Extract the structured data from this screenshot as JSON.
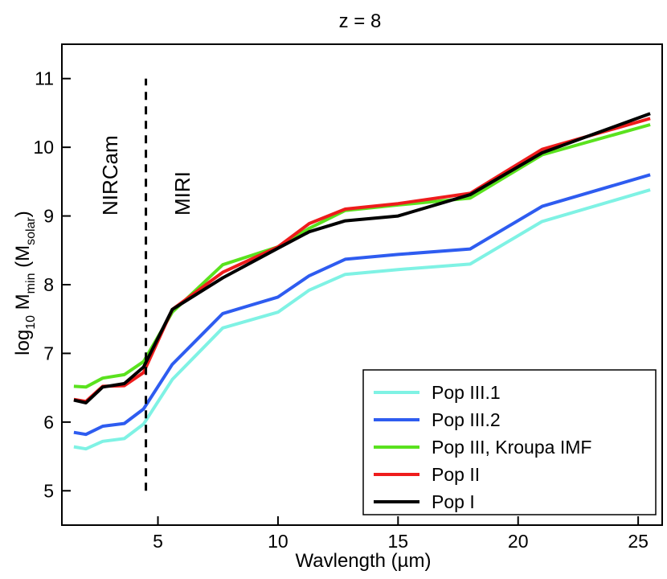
{
  "chart_data": {
    "type": "line",
    "title": "z = 8",
    "xlabel": "Wavlength (µm)",
    "ylabel": {
      "prefix": "log",
      "sub1": "10",
      "mid": " M",
      "sub2": "min",
      "open": " (M",
      "sub3": "solar",
      "close": ")"
    },
    "xlim": [
      1,
      26
    ],
    "ylim": [
      4.5,
      11.5
    ],
    "xticks": [
      5,
      10,
      15,
      20,
      25
    ],
    "yticks": [
      5,
      6,
      7,
      8,
      9,
      10,
      11
    ],
    "grid": false,
    "legend_position": "lower-right",
    "x": [
      1.5,
      2.0,
      2.7,
      3.6,
      4.4,
      5.6,
      7.7,
      10.0,
      11.3,
      12.8,
      15.0,
      18.0,
      21.0,
      25.5
    ],
    "series": [
      {
        "name": "Pop III.1",
        "color": "#7ff2e4",
        "values": [
          5.64,
          5.61,
          5.72,
          5.76,
          5.97,
          6.62,
          7.37,
          7.6,
          7.92,
          8.15,
          8.22,
          8.3,
          8.92,
          9.38
        ]
      },
      {
        "name": "Pop III.2",
        "color": "#2e5cf0",
        "values": [
          5.85,
          5.82,
          5.94,
          5.98,
          6.19,
          6.84,
          7.58,
          7.82,
          8.13,
          8.37,
          8.44,
          8.52,
          9.14,
          9.6
        ]
      },
      {
        "name": "Pop III, Kroupa IMF",
        "color": "#5ae21e",
        "values": [
          6.52,
          6.51,
          6.64,
          6.69,
          6.88,
          7.6,
          8.29,
          8.55,
          8.82,
          9.08,
          9.16,
          9.26,
          9.89,
          10.33
        ]
      },
      {
        "name": "Pop II",
        "color": "#ee1c1c",
        "values": [
          6.33,
          6.3,
          6.52,
          6.53,
          6.72,
          7.64,
          8.18,
          8.55,
          8.89,
          9.1,
          9.18,
          9.33,
          9.97,
          10.42
        ]
      },
      {
        "name": "Pop I",
        "color": "#000000",
        "values": [
          6.32,
          6.28,
          6.51,
          6.56,
          6.8,
          7.64,
          8.1,
          8.53,
          8.77,
          8.93,
          9.0,
          9.31,
          9.92,
          10.49
        ]
      }
    ],
    "vline": {
      "x": 4.5,
      "y_from": 5.0,
      "y_to": 11.0,
      "style": "dashed"
    },
    "annotations": {
      "left": "NIRCam",
      "right": "MIRI"
    }
  }
}
